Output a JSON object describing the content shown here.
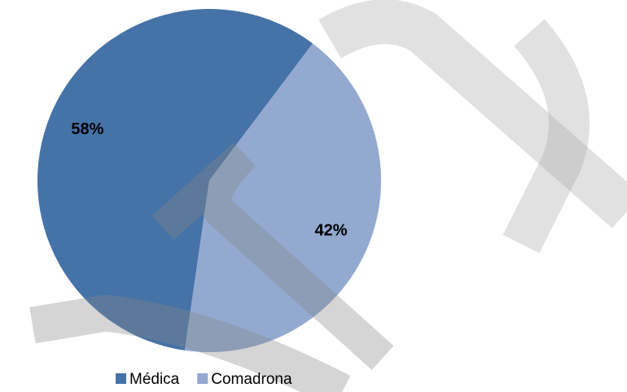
{
  "chart_data": {
    "type": "pie",
    "categories": [
      "Médica",
      "Comadrona"
    ],
    "values": [
      58,
      42
    ],
    "value_labels": [
      "58%",
      "42%"
    ],
    "colors": [
      "#4572a7",
      "#93a9cf"
    ],
    "legend": "bottom"
  }
}
